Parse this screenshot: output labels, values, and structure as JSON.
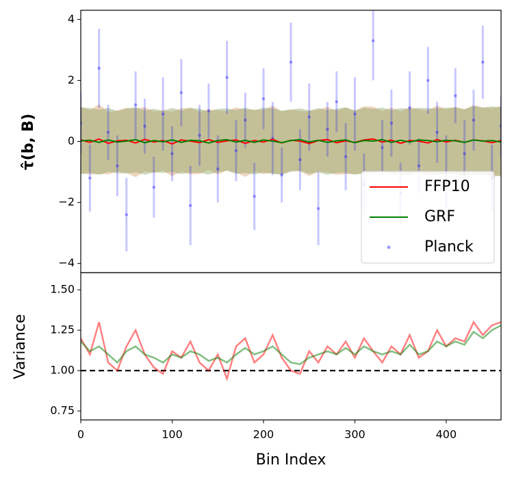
{
  "chart_data": [
    {
      "type": "line",
      "ylabel": "τ̂(b, B)",
      "legend": "lower right",
      "xlim": [
        0,
        460
      ],
      "ylim": [
        -4.3,
        4.3
      ],
      "yticks": [
        {
          "value": -4,
          "label": "−4"
        },
        {
          "value": -2,
          "label": "−2"
        },
        0,
        2,
        4
      ],
      "x": [
        0,
        10,
        20,
        30,
        40,
        50,
        60,
        70,
        80,
        90,
        100,
        110,
        120,
        130,
        140,
        150,
        160,
        170,
        180,
        190,
        200,
        210,
        220,
        230,
        240,
        250,
        260,
        270,
        280,
        290,
        300,
        310,
        320,
        330,
        340,
        350,
        360,
        370,
        380,
        390,
        400,
        410,
        420,
        430,
        440,
        450,
        460
      ],
      "series": [
        {
          "name": "FFP10",
          "color": "#ff0000",
          "marker": "line",
          "values": [
            0.05,
            -0.03,
            0.08,
            -0.06,
            0.02,
            0.04,
            -0.05,
            0.07,
            -0.02,
            0.03,
            -0.08,
            0.05,
            0.01,
            -0.04,
            0.06,
            -0.03,
            0.02,
            0.05,
            -0.06,
            0.03,
            -0.02,
            0.07,
            -0.05,
            0.04,
            0.01,
            -0.07,
            0.03,
            0.06,
            -0.04,
            0.02,
            -0.03,
            0.05,
            0.08,
            -0.02,
            0.04,
            -0.06,
            0.03,
            0.01,
            -0.05,
            0.06,
            -0.02,
            0.04,
            -0.03,
            0.05,
            0.02,
            -0.04,
            0.03
          ],
          "errors": [
            1.1,
            1.05,
            1.14,
            1.02,
            1.0,
            1.07,
            1.12,
            1.05,
            1.01,
            0.99,
            1.06,
            1.04,
            1.09,
            1.02,
            1.0,
            1.05,
            0.97,
            1.07,
            1.1,
            1.02,
            1.05,
            1.1,
            1.04,
            1.0,
            0.99,
            1.06,
            1.02,
            1.07,
            1.05,
            1.09,
            1.04,
            1.1,
            1.06,
            1.02,
            1.07,
            1.05,
            1.1,
            1.04,
            1.06,
            1.12,
            1.07,
            1.1,
            1.09,
            1.14,
            1.1,
            1.13,
            1.14
          ]
        },
        {
          "name": "GRF",
          "color": "#008000",
          "marker": "line",
          "values": [
            0.02,
            0.04,
            -0.03,
            0.05,
            -0.02,
            0.01,
            0.06,
            -0.04,
            0.03,
            -0.01,
            0.05,
            -0.03,
            0.04,
            0.02,
            -0.05,
            0.03,
            0.06,
            -0.02,
            0.04,
            -0.03,
            0.05,
            0.01,
            -0.04,
            0.03,
            0.06,
            -0.02,
            0.04,
            -0.03,
            0.02,
            0.05,
            -0.04,
            0.03,
            0.01,
            0.06,
            -0.03,
            0.04,
            -0.02,
            0.05,
            0.03,
            -0.01,
            0.04,
            0.02,
            -0.03,
            0.05,
            0.01,
            0.03,
            -0.02
          ],
          "errors": [
            1.09,
            1.06,
            1.07,
            1.05,
            1.02,
            1.06,
            1.07,
            1.05,
            1.04,
            1.02,
            1.05,
            1.04,
            1.06,
            1.05,
            1.03,
            1.04,
            1.02,
            1.05,
            1.07,
            1.05,
            1.06,
            1.07,
            1.05,
            1.02,
            1.02,
            1.04,
            1.05,
            1.06,
            1.05,
            1.07,
            1.05,
            1.07,
            1.06,
            1.05,
            1.06,
            1.05,
            1.08,
            1.05,
            1.06,
            1.09,
            1.07,
            1.09,
            1.08,
            1.11,
            1.1,
            1.12,
            1.13
          ]
        },
        {
          "name": "Planck",
          "color": "#0000ff",
          "marker": "point",
          "values": [
            0.6,
            -1.2,
            2.4,
            0.3,
            -0.8,
            -2.4,
            1.2,
            0.5,
            -1.5,
            0.9,
            -0.4,
            1.6,
            -2.1,
            0.2,
            1.0,
            -0.9,
            2.1,
            -0.3,
            0.7,
            -1.8,
            1.4,
            0.1,
            -1.1,
            2.6,
            -0.6,
            0.8,
            -2.2,
            0.4,
            1.3,
            -0.5,
            0.9,
            -1.4,
            3.3,
            -0.2,
            0.6,
            -1.7,
            1.1,
            -0.8,
            2.0,
            0.3,
            -1.0,
            1.5,
            -0.4,
            0.7,
            2.6,
            -1.2,
            0.5
          ],
          "errors": [
            1.0,
            1.1,
            1.3,
            0.9,
            1.0,
            1.2,
            1.1,
            0.9,
            1.0,
            1.2,
            0.9,
            1.1,
            1.3,
            1.0,
            0.9,
            1.1,
            1.2,
            1.0,
            0.9,
            1.1,
            1.0,
            1.2,
            0.9,
            1.3,
            1.0,
            1.1,
            1.2,
            0.9,
            1.0,
            1.1,
            1.2,
            1.0,
            1.3,
            0.9,
            1.1,
            1.0,
            1.2,
            0.9,
            1.1,
            1.0,
            1.2,
            0.9,
            1.1,
            1.0,
            1.2,
            1.1,
            1.0
          ]
        }
      ]
    },
    {
      "type": "line",
      "ylabel": "Variance",
      "xlabel": "Bin Index",
      "xlim": [
        0,
        460
      ],
      "ylim": [
        0.695,
        1.606
      ],
      "hline": 1,
      "xticks": [
        0,
        100,
        200,
        300,
        400
      ],
      "yticks": [
        {
          "value": 0.75,
          "label": "0.75"
        },
        {
          "value": 1,
          "label": "1.00"
        },
        {
          "value": 1.25,
          "label": "1.25"
        },
        {
          "value": 1.5,
          "label": "1.50"
        }
      ],
      "x": [
        0,
        10,
        20,
        30,
        40,
        50,
        60,
        70,
        80,
        90,
        100,
        110,
        120,
        130,
        140,
        150,
        160,
        170,
        180,
        190,
        200,
        210,
        220,
        230,
        240,
        250,
        260,
        270,
        280,
        290,
        300,
        310,
        320,
        330,
        340,
        350,
        360,
        370,
        380,
        390,
        400,
        410,
        420,
        430,
        440,
        450,
        460
      ],
      "series": [
        {
          "name": "FFP10",
          "color": "#ff0000",
          "values": [
            1.2,
            1.1,
            1.3,
            1.05,
            1.0,
            1.15,
            1.25,
            1.1,
            1.02,
            0.98,
            1.12,
            1.08,
            1.18,
            1.05,
            1.0,
            1.1,
            0.95,
            1.15,
            1.2,
            1.05,
            1.1,
            1.22,
            1.08,
            1.0,
            0.98,
            1.12,
            1.05,
            1.15,
            1.1,
            1.18,
            1.08,
            1.2,
            1.12,
            1.05,
            1.15,
            1.1,
            1.22,
            1.08,
            1.12,
            1.25,
            1.15,
            1.2,
            1.18,
            1.3,
            1.22,
            1.28,
            1.3
          ]
        },
        {
          "name": "GRF",
          "color": "#008000",
          "values": [
            1.18,
            1.12,
            1.15,
            1.1,
            1.05,
            1.12,
            1.15,
            1.1,
            1.08,
            1.05,
            1.1,
            1.08,
            1.12,
            1.1,
            1.06,
            1.08,
            1.05,
            1.1,
            1.14,
            1.1,
            1.12,
            1.15,
            1.1,
            1.05,
            1.04,
            1.08,
            1.1,
            1.12,
            1.1,
            1.14,
            1.1,
            1.15,
            1.12,
            1.1,
            1.12,
            1.1,
            1.16,
            1.1,
            1.12,
            1.18,
            1.15,
            1.18,
            1.16,
            1.24,
            1.2,
            1.25,
            1.28
          ]
        }
      ]
    }
  ]
}
